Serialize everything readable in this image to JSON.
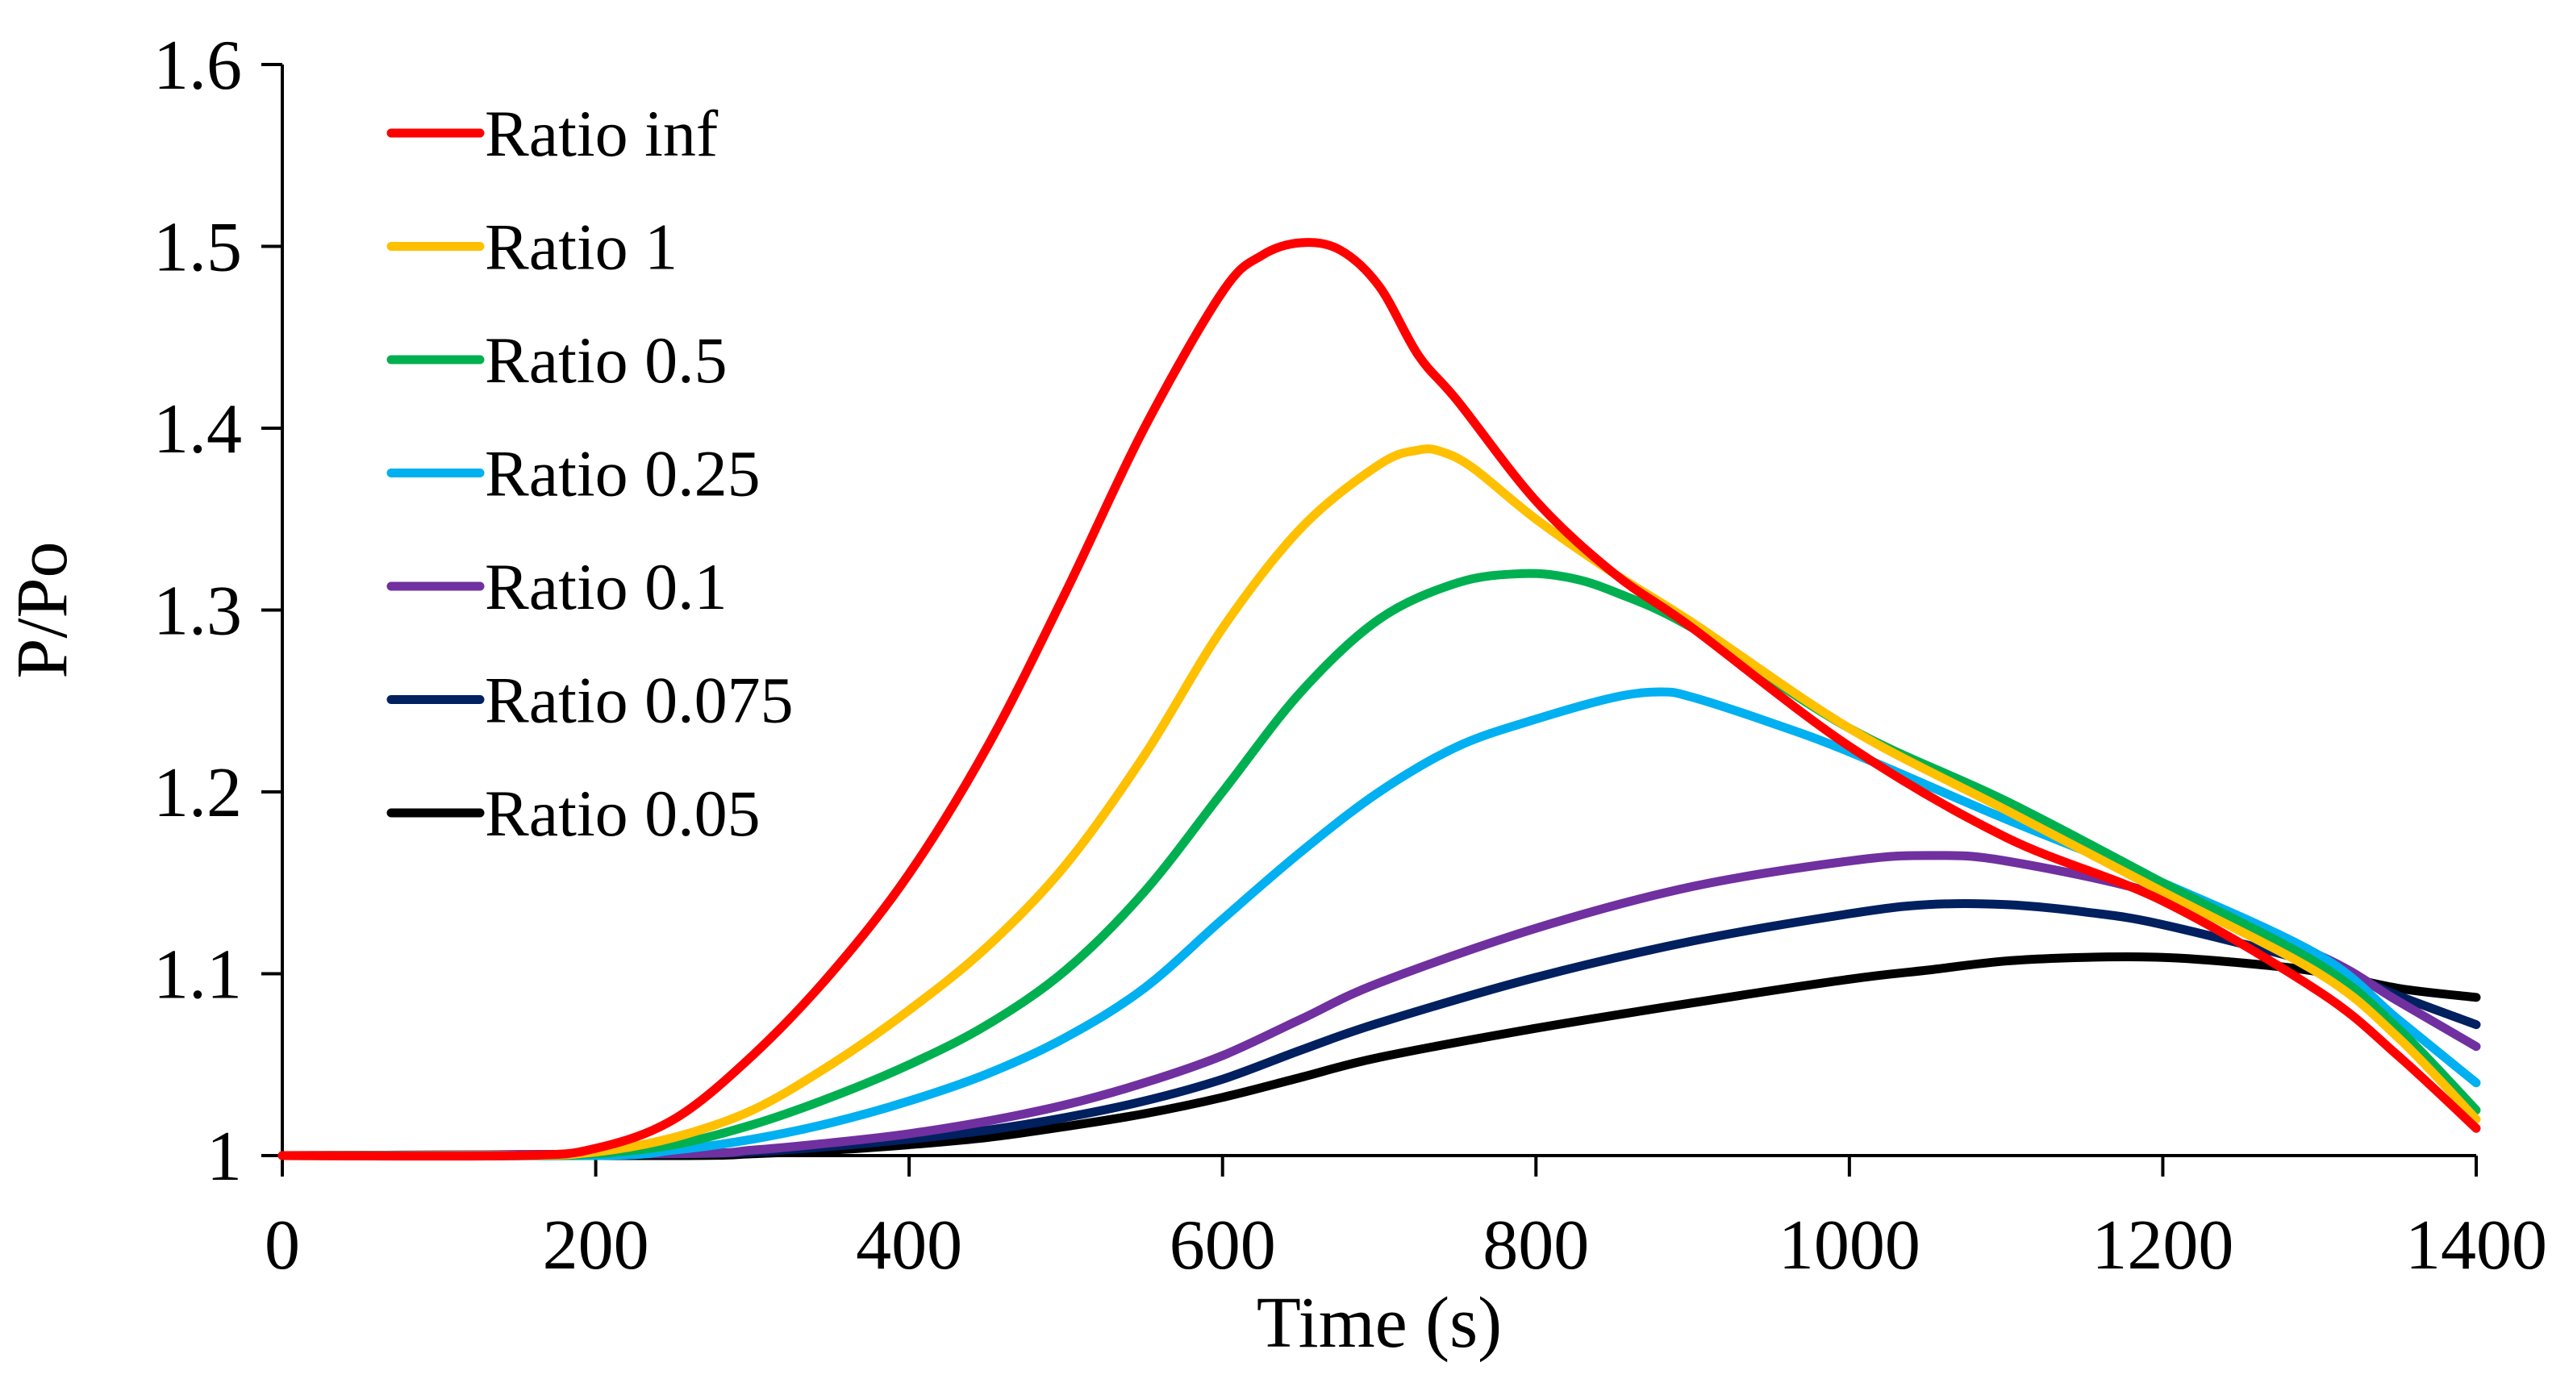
{
  "chart_data": {
    "type": "line",
    "title": "",
    "xlabel": "Time (s)",
    "ylabel": "P/Po",
    "xlim": [
      0,
      1400
    ],
    "ylim": [
      1,
      1.6
    ],
    "xticks": [
      0,
      200,
      400,
      600,
      800,
      1000,
      1200,
      1400
    ],
    "yticks": [
      1,
      1.1,
      1.2,
      1.3,
      1.4,
      1.5,
      1.6
    ],
    "xtick_labels": [
      "0",
      "200",
      "400",
      "600",
      "800",
      "1000",
      "1200",
      "1400"
    ],
    "ytick_labels": [
      "1",
      "1.1",
      "1.2",
      "1.3",
      "1.4",
      "1.5",
      "1.6"
    ],
    "grid": false,
    "legend_position": "top-left",
    "series": [
      {
        "name": "Ratio inf",
        "color": "#ff0000",
        "x": [
          0,
          150,
          200,
          250,
          300,
          350,
          400,
          450,
          500,
          550,
          600,
          625,
          650,
          675,
          700,
          725,
          750,
          800,
          850,
          900,
          1000,
          1100,
          1200,
          1300,
          1350,
          1400
        ],
        "y": [
          1.0,
          1.0,
          1.004,
          1.02,
          1.055,
          1.1,
          1.155,
          1.225,
          1.31,
          1.4,
          1.475,
          1.495,
          1.502,
          1.498,
          1.478,
          1.44,
          1.415,
          1.36,
          1.32,
          1.29,
          1.225,
          1.175,
          1.14,
          1.09,
          1.055,
          1.015
        ]
      },
      {
        "name": "Ratio 1",
        "color": "#ffc000",
        "x": [
          0,
          150,
          200,
          250,
          300,
          350,
          400,
          450,
          500,
          550,
          600,
          650,
          700,
          725,
          740,
          760,
          800,
          850,
          900,
          1000,
          1100,
          1200,
          1300,
          1350,
          1400
        ],
        "y": [
          1.0,
          1.0,
          1.002,
          1.01,
          1.025,
          1.05,
          1.08,
          1.115,
          1.16,
          1.22,
          1.29,
          1.345,
          1.38,
          1.388,
          1.387,
          1.378,
          1.35,
          1.32,
          1.293,
          1.235,
          1.19,
          1.145,
          1.1,
          1.065,
          1.02
        ]
      },
      {
        "name": "Ratio 0.5",
        "color": "#00b050",
        "x": [
          0,
          150,
          200,
          250,
          300,
          350,
          400,
          450,
          500,
          550,
          600,
          650,
          700,
          750,
          790,
          820,
          850,
          900,
          1000,
          1100,
          1200,
          1300,
          1350,
          1400
        ],
        "y": [
          1.0,
          1.0,
          1.001,
          1.006,
          1.017,
          1.032,
          1.05,
          1.072,
          1.102,
          1.145,
          1.2,
          1.255,
          1.295,
          1.315,
          1.32,
          1.318,
          1.31,
          1.29,
          1.235,
          1.195,
          1.15,
          1.105,
          1.07,
          1.025
        ]
      },
      {
        "name": "Ratio 0.25",
        "color": "#00b0f0",
        "x": [
          0,
          200,
          250,
          300,
          350,
          400,
          450,
          500,
          550,
          600,
          650,
          700,
          750,
          800,
          850,
          880,
          900,
          950,
          1000,
          1100,
          1200,
          1300,
          1350,
          1400
        ],
        "y": [
          1.0,
          1.0,
          1.003,
          1.009,
          1.018,
          1.03,
          1.045,
          1.065,
          1.092,
          1.13,
          1.167,
          1.2,
          1.225,
          1.24,
          1.252,
          1.255,
          1.252,
          1.238,
          1.222,
          1.185,
          1.15,
          1.11,
          1.075,
          1.04
        ]
      },
      {
        "name": "Ratio 0.1",
        "color": "#7030a0",
        "x": [
          0,
          250,
          300,
          350,
          400,
          450,
          500,
          550,
          600,
          650,
          700,
          800,
          900,
          1000,
          1050,
          1100,
          1200,
          1300,
          1350,
          1400
        ],
        "y": [
          1.0,
          1.001,
          1.003,
          1.007,
          1.012,
          1.019,
          1.028,
          1.04,
          1.055,
          1.075,
          1.095,
          1.125,
          1.148,
          1.162,
          1.165,
          1.162,
          1.143,
          1.11,
          1.085,
          1.06
        ]
      },
      {
        "name": "Ratio 0.075",
        "color": "#002060",
        "x": [
          0,
          250,
          300,
          350,
          400,
          450,
          500,
          550,
          600,
          650,
          700,
          800,
          900,
          1000,
          1050,
          1100,
          1150,
          1200,
          1300,
          1350,
          1400
        ],
        "y": [
          1.0,
          1.001,
          1.002,
          1.005,
          1.009,
          1.014,
          1.021,
          1.03,
          1.042,
          1.058,
          1.073,
          1.098,
          1.118,
          1.133,
          1.138,
          1.138,
          1.134,
          1.127,
          1.105,
          1.088,
          1.072
        ]
      },
      {
        "name": "Ratio 0.05",
        "color": "#000000",
        "x": [
          0,
          250,
          300,
          350,
          400,
          450,
          500,
          550,
          600,
          650,
          700,
          800,
          900,
          1000,
          1050,
          1100,
          1150,
          1200,
          1250,
          1300,
          1350,
          1400
        ],
        "y": [
          1.0,
          1.0,
          1.001,
          1.003,
          1.006,
          1.01,
          1.016,
          1.023,
          1.032,
          1.043,
          1.054,
          1.07,
          1.084,
          1.097,
          1.102,
          1.107,
          1.109,
          1.109,
          1.106,
          1.101,
          1.092,
          1.087
        ]
      }
    ]
  }
}
